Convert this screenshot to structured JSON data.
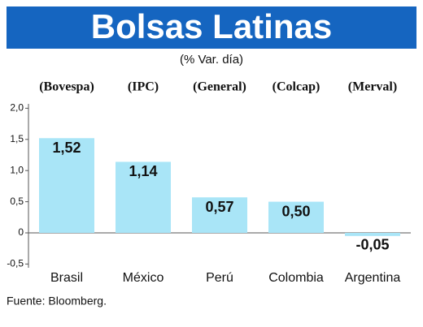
{
  "chart_data": {
    "type": "bar",
    "title": "Bolsas Latinas",
    "subtitle": "(% Var. día)",
    "index_labels": [
      "(Bovespa)",
      "(IPC)",
      "(General)",
      "(Colcap)",
      "(Merval)"
    ],
    "categories": [
      "Brasil",
      "México",
      "Perú",
      "Colombia",
      "Argentina"
    ],
    "values": [
      1.52,
      1.14,
      0.57,
      0.5,
      -0.05
    ],
    "value_labels": [
      "1,52",
      "1,14",
      "0,57",
      "0,50",
      "-0,05"
    ],
    "color": "#a9e5f7",
    "ylim": [
      -0.5,
      2.0
    ],
    "yticks": [
      {
        "value": -0.5,
        "label": "-0,5"
      },
      0,
      {
        "value": 0.5,
        "label": "0,5"
      },
      {
        "value": 1.0,
        "label": "1,0"
      },
      {
        "value": 1.5,
        "label": "1,5"
      },
      {
        "value": 2.0,
        "label": "2,0"
      }
    ],
    "source": "Fuente: Bloomberg."
  }
}
